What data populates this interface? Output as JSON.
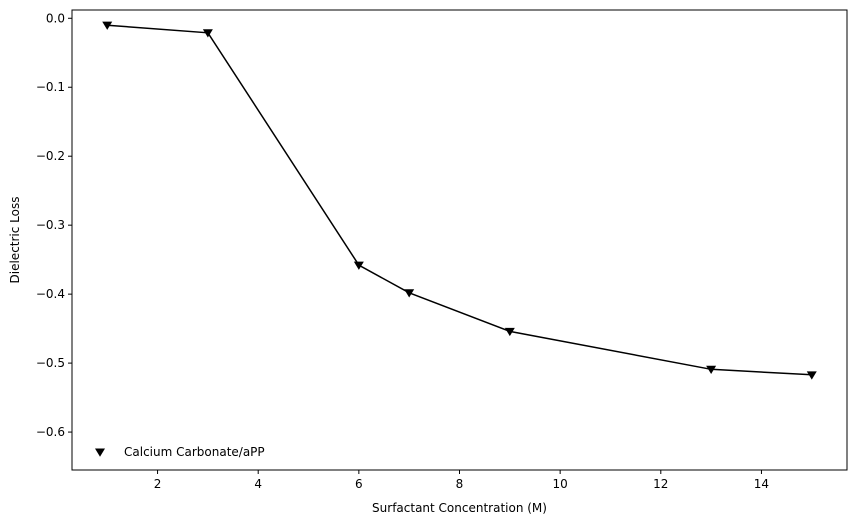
{
  "chart_data": {
    "type": "line",
    "xlabel": "Surfactant Concentration (M)",
    "ylabel": "Dielectric Loss",
    "xlim": [
      0.3,
      15.7
    ],
    "ylim": [
      -0.655,
      0.012
    ],
    "xticks": [
      2,
      4,
      6,
      8,
      10,
      12,
      14
    ],
    "xtick_labels": [
      "2",
      "4",
      "6",
      "8",
      "10",
      "12",
      "14"
    ],
    "yticks": [
      0.0,
      -0.1,
      -0.2,
      -0.3,
      -0.4,
      -0.5,
      -0.6
    ],
    "ytick_labels": [
      "0.0",
      "−0.1",
      "−0.2",
      "−0.3",
      "−0.4",
      "−0.5",
      "−0.6"
    ],
    "grid": false,
    "legend_position": "lower-left",
    "series": [
      {
        "name": "Calcium Carbonate/aPP",
        "color": "#000000",
        "marker": "triangle-down",
        "x": [
          1,
          3,
          6,
          7,
          9,
          13,
          15
        ],
        "y": [
          -0.01,
          -0.021,
          -0.358,
          -0.398,
          -0.454,
          -0.509,
          -0.517
        ]
      }
    ]
  }
}
